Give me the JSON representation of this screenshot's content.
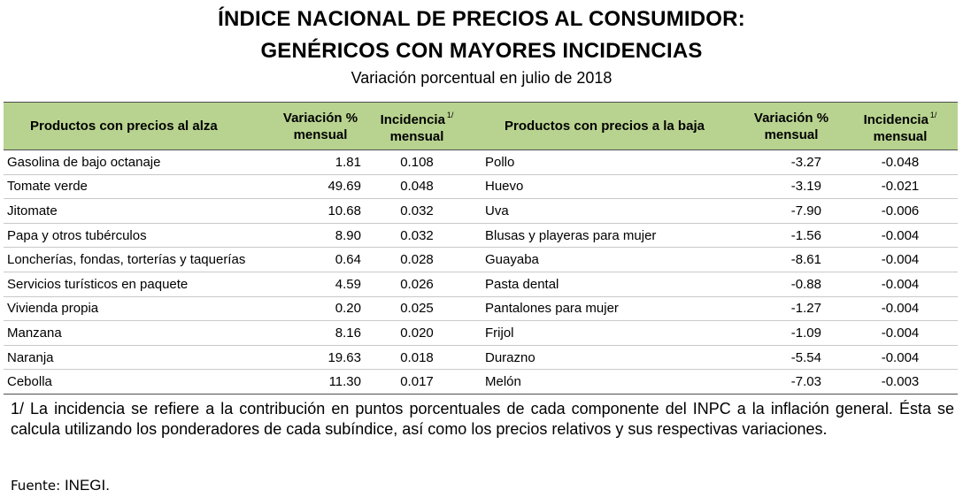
{
  "title_line1": "ÍNDICE NACIONAL DE PRECIOS AL CONSUMIDOR:",
  "title_line2": "GENÉRICOS CON MAYORES INCIDENCIAS",
  "subtitle": "Variación porcentual en julio de 2018",
  "headers": {
    "up_products": "Productos con precios al alza",
    "up_variation_l1": "Variación %",
    "up_variation_l2": "mensual",
    "up_incidence_l1": "Incidencia",
    "up_incidence_sup": "1/",
    "up_incidence_l2": "mensual",
    "down_products": "Productos con precios a la baja",
    "down_variation_l1": "Variación %",
    "down_variation_l2": "mensual",
    "down_incidence_l1": "Incidencia",
    "down_incidence_sup": "1/",
    "down_incidence_l2": "mensual"
  },
  "rows": [
    {
      "up_name": "Gasolina de bajo octanaje",
      "up_var": "1.81",
      "up_inc": "0.108",
      "down_name": "Pollo",
      "down_var": "-3.27",
      "down_inc": "-0.048"
    },
    {
      "up_name": "Tomate verde",
      "up_var": "49.69",
      "up_inc": "0.048",
      "down_name": "Huevo",
      "down_var": "-3.19",
      "down_inc": "-0.021"
    },
    {
      "up_name": "Jitomate",
      "up_var": "10.68",
      "up_inc": "0.032",
      "down_name": "Uva",
      "down_var": "-7.90",
      "down_inc": "-0.006"
    },
    {
      "up_name": "Papa y otros tubérculos",
      "up_var": "8.90",
      "up_inc": "0.032",
      "down_name": "Blusas y playeras para mujer",
      "down_var": "-1.56",
      "down_inc": "-0.004"
    },
    {
      "up_name": "Loncherías, fondas, torterías y taquerías",
      "up_var": "0.64",
      "up_inc": "0.028",
      "down_name": "Guayaba",
      "down_var": "-8.61",
      "down_inc": "-0.004"
    },
    {
      "up_name": "Servicios turísticos en paquete",
      "up_var": "4.59",
      "up_inc": "0.026",
      "down_name": "Pasta dental",
      "down_var": "-0.88",
      "down_inc": "-0.004"
    },
    {
      "up_name": "Vivienda propia",
      "up_var": "0.20",
      "up_inc": "0.025",
      "down_name": "Pantalones para mujer",
      "down_var": "-1.27",
      "down_inc": "-0.004"
    },
    {
      "up_name": "Manzana",
      "up_var": "8.16",
      "up_inc": "0.020",
      "down_name": "Frijol",
      "down_var": "-1.09",
      "down_inc": "-0.004"
    },
    {
      "up_name": "Naranja",
      "up_var": "19.63",
      "up_inc": "0.018",
      "down_name": "Durazno",
      "down_var": "-5.54",
      "down_inc": "-0.004"
    },
    {
      "up_name": "Cebolla",
      "up_var": "11.30",
      "up_inc": "0.017",
      "down_name": "Melón",
      "down_var": "-7.03",
      "down_inc": "-0.003"
    }
  ],
  "footnote": "1/ La incidencia se refiere a la contribución en puntos porcentuales de cada componente del INPC a la inflación general. Ésta se calcula utilizando los ponderadores de cada subíndice, así como los precios relativos y sus respectivas variaciones.",
  "source_label": "Fuente:",
  "source_value": "INEGI.",
  "colors": {
    "header_bg": "#b8d38f",
    "rule": "#4f4f4f"
  }
}
